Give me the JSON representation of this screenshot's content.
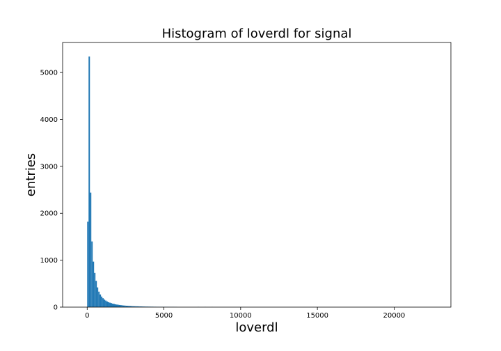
{
  "chart_data": {
    "type": "bar",
    "title": "Histogram of loverdl for signal",
    "xlabel": "loverdl",
    "ylabel": "entries",
    "xlim": [
      -1600,
      23700
    ],
    "ylim": [
      0,
      5640
    ],
    "xticks": [
      0,
      5000,
      10000,
      15000,
      20000
    ],
    "yticks": [
      0,
      1000,
      2000,
      3000,
      4000,
      5000
    ],
    "grid": false,
    "color": "#1f77b4",
    "bin_width": 90,
    "series": [
      {
        "bin_start": [
          0,
          90,
          180,
          270,
          360,
          450,
          540,
          630,
          720,
          810,
          900,
          990,
          1080,
          1170,
          1260,
          1350,
          1440,
          1530,
          1620,
          1710,
          1800,
          1890,
          1980,
          2070,
          2160,
          2250,
          2340,
          2430,
          2520,
          2610,
          2700,
          2790,
          2880,
          2970,
          3060,
          3150,
          3240,
          3330,
          3420,
          3510,
          3600,
          3690,
          3780,
          3870,
          3960,
          4050,
          4140,
          4230,
          4320,
          4410,
          4500,
          4590,
          4680,
          4770,
          4860,
          4950,
          5040,
          5130,
          5220,
          5310,
          5400,
          5490,
          5580,
          5670,
          5760,
          7200,
          7650,
          8100
        ],
        "values": [
          1820,
          5340,
          2440,
          1400,
          970,
          730,
          560,
          420,
          330,
          270,
          225,
          190,
          160,
          140,
          120,
          105,
          95,
          85,
          75,
          68,
          60,
          55,
          50,
          46,
          42,
          38,
          35,
          32,
          30,
          28,
          26,
          24,
          22,
          20,
          19,
          18,
          17,
          16,
          15,
          14,
          13,
          12,
          11,
          11,
          10,
          10,
          9,
          9,
          8,
          8,
          7,
          7,
          6,
          6,
          6,
          5,
          5,
          5,
          5,
          4,
          4,
          4,
          4,
          3,
          3,
          3,
          2,
          2
        ]
      }
    ]
  }
}
